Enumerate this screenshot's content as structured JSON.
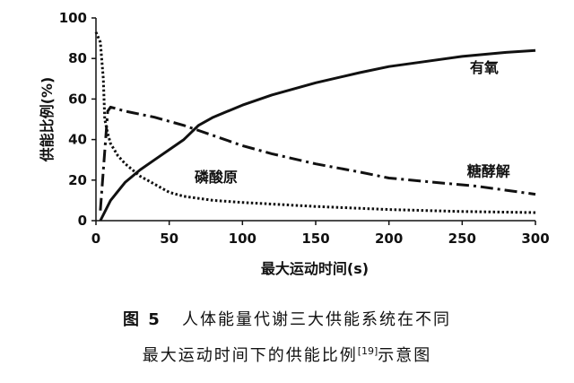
{
  "chart_data": {
    "type": "line",
    "xlabel": "最大运动时间(s)",
    "ylabel": "供能比例(%)",
    "xlim": [
      0,
      300
    ],
    "ylim": [
      0,
      100
    ],
    "xticks": [
      0,
      50,
      100,
      150,
      200,
      250,
      300
    ],
    "yticks": [
      0,
      20,
      40,
      60,
      80,
      100
    ],
    "grid": false,
    "series": [
      {
        "name": "有氧",
        "line_style": "solid",
        "label_anchor": {
          "x": 265,
          "y": 73
        },
        "points": [
          [
            3,
            0
          ],
          [
            10,
            10
          ],
          [
            20,
            19
          ],
          [
            30,
            25
          ],
          [
            40,
            30
          ],
          [
            50,
            35
          ],
          [
            60,
            40
          ],
          [
            70,
            47
          ],
          [
            80,
            51
          ],
          [
            100,
            57
          ],
          [
            120,
            62
          ],
          [
            150,
            68
          ],
          [
            180,
            73
          ],
          [
            200,
            76
          ],
          [
            220,
            78
          ],
          [
            250,
            81
          ],
          [
            280,
            83
          ],
          [
            300,
            84
          ]
        ]
      },
      {
        "name": "糖酵解",
        "line_style": "dashdot",
        "label_anchor": {
          "x": 268,
          "y": 22
        },
        "points": [
          [
            3,
            5
          ],
          [
            8,
            54
          ],
          [
            10,
            56
          ],
          [
            20,
            54
          ],
          [
            40,
            51
          ],
          [
            60,
            47
          ],
          [
            80,
            42
          ],
          [
            100,
            37
          ],
          [
            120,
            33
          ],
          [
            150,
            28
          ],
          [
            180,
            24
          ],
          [
            200,
            21
          ],
          [
            230,
            19
          ],
          [
            260,
            17
          ],
          [
            280,
            15
          ],
          [
            300,
            13
          ]
        ]
      },
      {
        "name": "磷酸原",
        "line_style": "dotted",
        "label_anchor": {
          "x": 82,
          "y": 19
        },
        "points": [
          [
            0,
            93
          ],
          [
            3,
            88
          ],
          [
            5,
            70
          ],
          [
            6,
            50
          ],
          [
            8,
            43
          ],
          [
            10,
            38
          ],
          [
            15,
            32
          ],
          [
            20,
            28
          ],
          [
            30,
            22
          ],
          [
            40,
            18
          ],
          [
            50,
            14
          ],
          [
            60,
            12
          ],
          [
            80,
            10
          ],
          [
            100,
            9
          ],
          [
            150,
            7
          ],
          [
            200,
            5.5
          ],
          [
            250,
            4.5
          ],
          [
            300,
            4
          ]
        ]
      }
    ]
  },
  "caption": {
    "figure_no": "图 5",
    "title": "人体能量代谢三大供能系统在不同",
    "line2": "最大运动时间下的供能比例",
    "ref": "[19]",
    "line2_tail": "示意图"
  }
}
